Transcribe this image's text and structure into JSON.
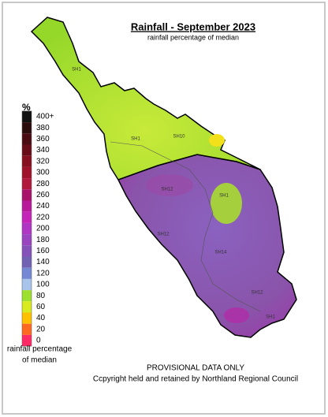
{
  "header": {
    "title": "Rainfall - September 2023",
    "subtitle": "rainfall percentage of median"
  },
  "legend": {
    "unit": "%",
    "caption": [
      "rainfall percentage",
      "of median"
    ],
    "items": [
      {
        "label": "400+",
        "color": "#111111"
      },
      {
        "label": "380",
        "color": "#2a0c0c"
      },
      {
        "label": "360",
        "color": "#4a0c12"
      },
      {
        "label": "340",
        "color": "#680d18"
      },
      {
        "label": "320",
        "color": "#861020"
      },
      {
        "label": "300",
        "color": "#a0122a"
      },
      {
        "label": "280",
        "color": "#b0183c"
      },
      {
        "label": "260",
        "color": "#a8126a"
      },
      {
        "label": "240",
        "color": "#b8189a"
      },
      {
        "label": "220",
        "color": "#c424b8"
      },
      {
        "label": "200",
        "color": "#b036c4"
      },
      {
        "label": "180",
        "color": "#9a44c0"
      },
      {
        "label": "160",
        "color": "#8452b8"
      },
      {
        "label": "140",
        "color": "#7262b4"
      },
      {
        "label": "120",
        "color": "#7488d4"
      },
      {
        "label": "100",
        "color": "#a8c4ea"
      },
      {
        "label": "80",
        "color": "#9ee030"
      },
      {
        "label": "60",
        "color": "#d8ea20"
      },
      {
        "label": "40",
        "color": "#ffc000"
      },
      {
        "label": "20",
        "color": "#ff6a20"
      },
      {
        "label": "0",
        "color": "#ff2a66"
      }
    ]
  },
  "map": {
    "road_labels": [
      "SH1",
      "SH1",
      "SH10",
      "SH12",
      "SH1",
      "SH12",
      "SH14",
      "SH12",
      "SH1"
    ]
  },
  "footer": {
    "lines": [
      "PROVISIONAL DATA ONLY",
      "Ccpyright held and retained by Northland Regional Council"
    ]
  }
}
